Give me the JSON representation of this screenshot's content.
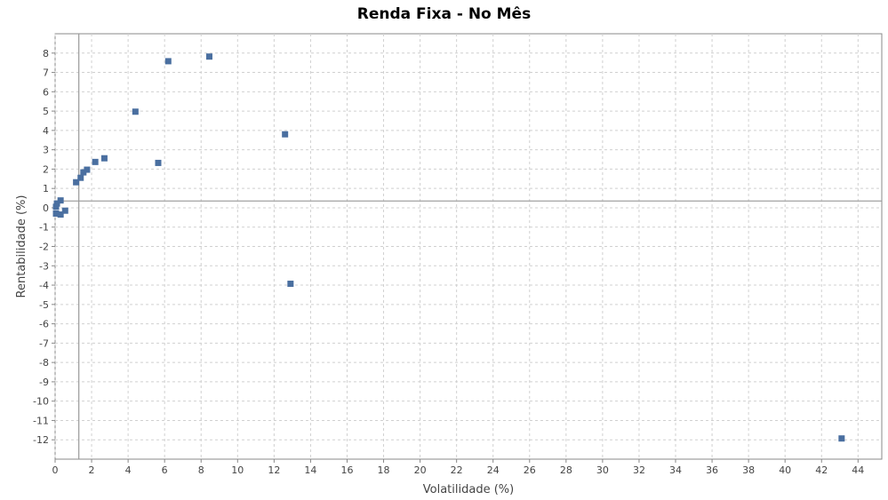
{
  "chart_data": {
    "type": "scatter",
    "title": "Renda Fixa - No Mês",
    "xlabel": "Volatilidade (%)",
    "ylabel": "Rentabilidade (%)",
    "xlim": [
      0,
      45.3
    ],
    "ylim": [
      -13,
      9
    ],
    "x_ticks": [
      0,
      2,
      4,
      6,
      8,
      10,
      12,
      14,
      16,
      18,
      20,
      22,
      24,
      26,
      28,
      30,
      32,
      34,
      36,
      38,
      40,
      42,
      44
    ],
    "y_ticks": [
      -12,
      -11,
      -10,
      -9,
      -8,
      -7,
      -6,
      -5,
      -4,
      -3,
      -2,
      -1,
      0,
      1,
      2,
      3,
      4,
      5,
      6,
      7,
      8
    ],
    "grid": true,
    "reference_lines": {
      "x": 1.3,
      "y": 0.35
    },
    "marker_color": "#4a6fa0",
    "points": [
      {
        "x": 8.45,
        "y": 7.82
      },
      {
        "x": 6.2,
        "y": 7.58
      },
      {
        "x": 4.4,
        "y": 4.97
      },
      {
        "x": 12.6,
        "y": 3.8
      },
      {
        "x": 2.7,
        "y": 2.56
      },
      {
        "x": 2.2,
        "y": 2.37
      },
      {
        "x": 5.65,
        "y": 2.32
      },
      {
        "x": 1.75,
        "y": 1.97
      },
      {
        "x": 1.55,
        "y": 1.83
      },
      {
        "x": 1.4,
        "y": 1.55
      },
      {
        "x": 1.15,
        "y": 1.32
      },
      {
        "x": 0.3,
        "y": 0.38
      },
      {
        "x": 0.1,
        "y": 0.22
      },
      {
        "x": 0.05,
        "y": 0.05
      },
      {
        "x": 0.55,
        "y": -0.15
      },
      {
        "x": 0.05,
        "y": -0.3
      },
      {
        "x": 0.3,
        "y": -0.35
      },
      {
        "x": 12.9,
        "y": -3.93
      },
      {
        "x": 43.1,
        "y": -11.93
      }
    ]
  }
}
